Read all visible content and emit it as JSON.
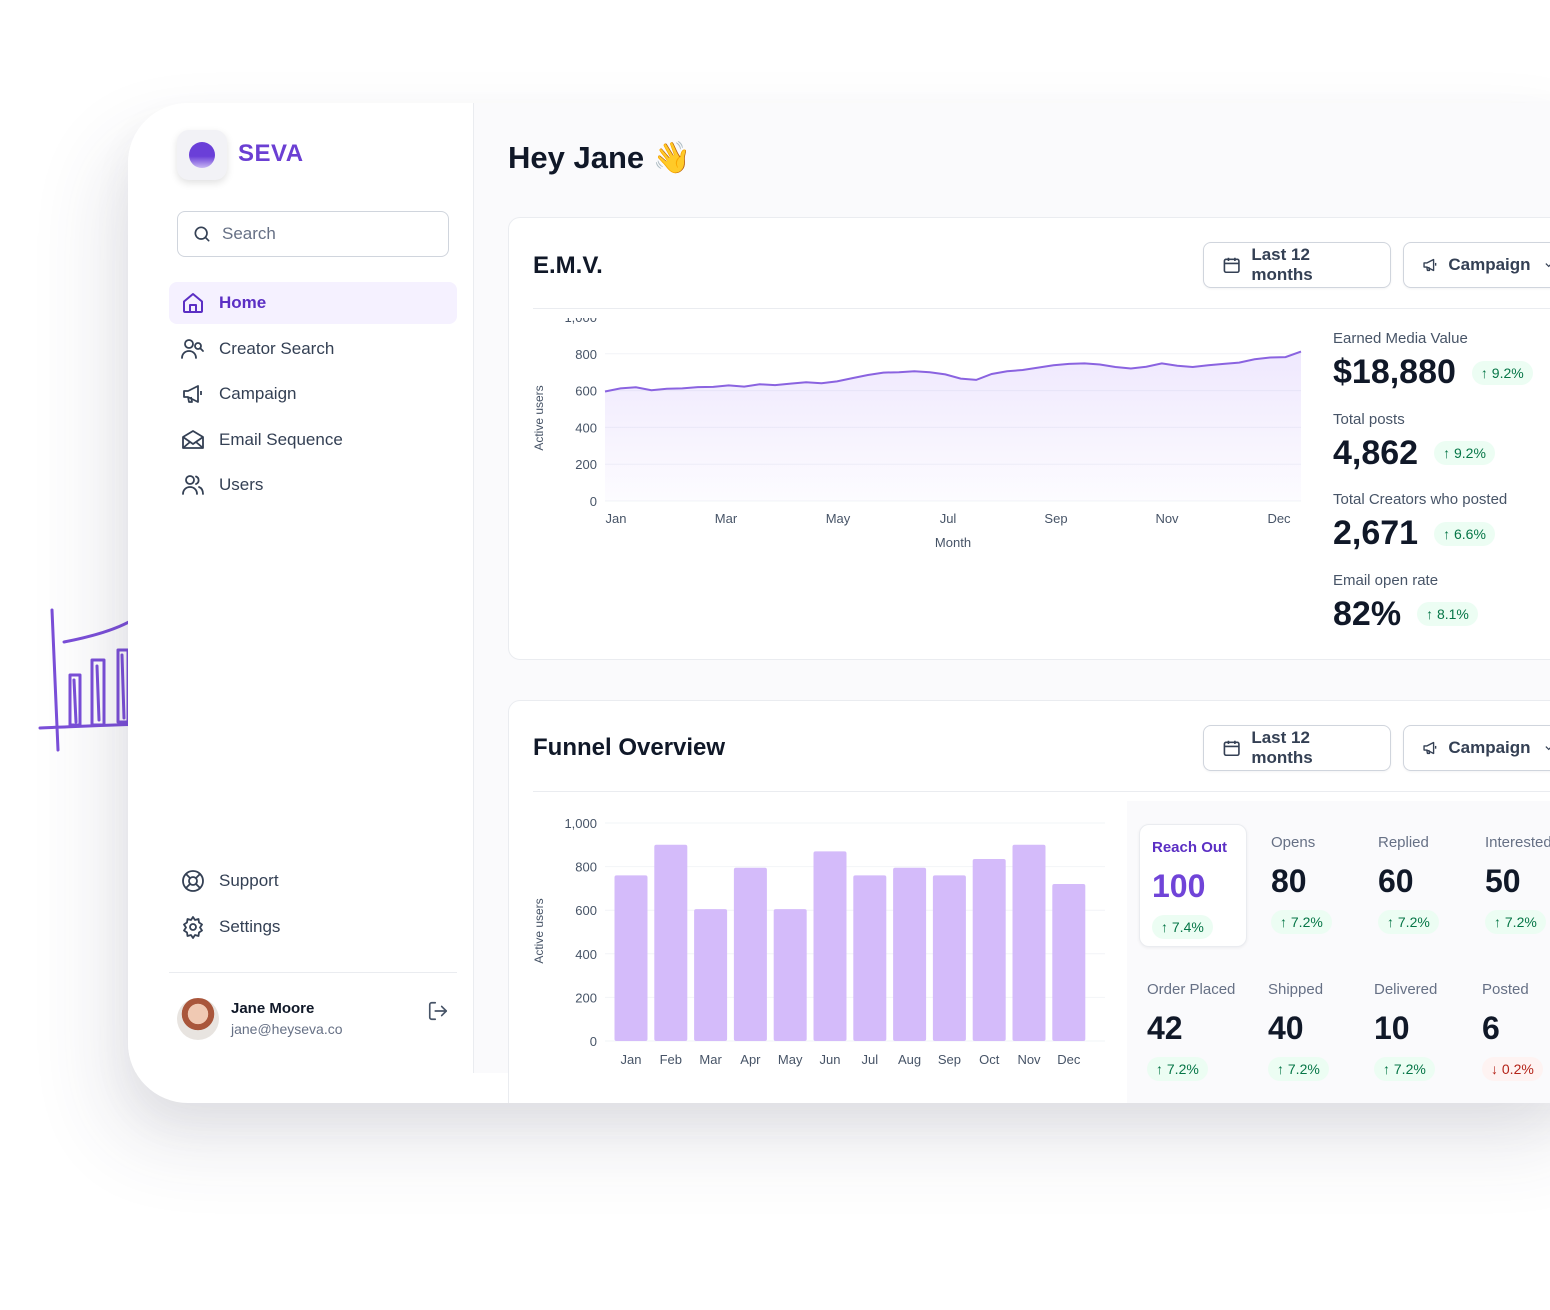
{
  "brand": {
    "name": "SEVA",
    "accent": "#6b3fd3",
    "chart_color": "#d4bbfa"
  },
  "search": {
    "placeholder": "Search"
  },
  "nav": {
    "items": [
      {
        "label": "Home",
        "icon": "home-icon",
        "active": true
      },
      {
        "label": "Creator Search",
        "icon": "creator-search-icon"
      },
      {
        "label": "Campaign",
        "icon": "megaphone-icon"
      },
      {
        "label": "Email Sequence",
        "icon": "mail-icon"
      },
      {
        "label": "Users",
        "icon": "users-icon"
      }
    ],
    "bottom": [
      {
        "label": "Support",
        "icon": "lifebuoy-icon"
      },
      {
        "label": "Settings",
        "icon": "gear-icon"
      }
    ]
  },
  "user": {
    "name": "Jane Moore",
    "email": "jane@heyseva.co"
  },
  "greeting": "Hey Jane 👋",
  "emv": {
    "title": "E.M.V.",
    "date_filter": "Last 12 months",
    "campaign_filter": "Campaign",
    "stats": [
      {
        "label": "Earned Media Value",
        "value": "$18,880",
        "change": "9.2%"
      },
      {
        "label": "Total posts",
        "value": "4,862",
        "change": "9.2%"
      },
      {
        "label": "Total Creators who posted",
        "value": "2,671",
        "change": "6.6%"
      },
      {
        "label": "Email open rate",
        "value": "82%",
        "change": "8.1%"
      }
    ]
  },
  "funnel": {
    "title": "Funnel Overview",
    "date_filter": "Last 12 months",
    "campaign_filter": "Campaign",
    "stages_top": [
      {
        "label": "Reach Out",
        "value": "100",
        "change": "7.4%",
        "direction": "up"
      },
      {
        "label": "Opens",
        "value": "80",
        "change": "7.2%",
        "direction": "up"
      },
      {
        "label": "Replied",
        "value": "60",
        "change": "7.2%",
        "direction": "up"
      },
      {
        "label": "Interested",
        "value": "50",
        "change": "7.2%",
        "direction": "up"
      }
    ],
    "stages_bottom": [
      {
        "label": "Order Placed",
        "value": "42",
        "change": "7.2%",
        "direction": "up"
      },
      {
        "label": "Shipped",
        "value": "40",
        "change": "7.2%",
        "direction": "up"
      },
      {
        "label": "Delivered",
        "value": "10",
        "change": "7.2%",
        "direction": "up"
      },
      {
        "label": "Posted",
        "value": "6",
        "change": "0.2%",
        "direction": "down"
      }
    ]
  },
  "chart_data": [
    {
      "type": "area",
      "xlabel": "Month",
      "ylabel": "Active users",
      "ylim": [
        0,
        1000
      ],
      "yticks": [
        "0",
        "200",
        "400",
        "600",
        "800",
        "1,000"
      ],
      "xtick_labels": [
        "Jan",
        "Mar",
        "May",
        "Jul",
        "Sep",
        "Nov",
        "Dec"
      ],
      "series": [
        {
          "values": [
            595,
            612,
            618,
            602,
            610,
            612,
            619,
            620,
            628,
            622,
            634,
            630,
            638,
            645,
            640,
            650,
            668,
            685,
            698,
            700,
            705,
            700,
            688,
            665,
            658,
            690,
            705,
            712,
            725,
            738,
            745,
            748,
            742,
            728,
            720,
            730,
            748,
            735,
            728,
            738,
            745,
            752,
            770,
            780,
            782,
            812
          ]
        }
      ]
    },
    {
      "type": "bar",
      "ylabel": "Active users",
      "ylim": [
        0,
        1000
      ],
      "yticks": [
        "0",
        "200",
        "400",
        "600",
        "800",
        "1,000"
      ],
      "categories": [
        "Jan",
        "Feb",
        "Mar",
        "Apr",
        "May",
        "Jun",
        "Jul",
        "Aug",
        "Sep",
        "Oct",
        "Nov",
        "Dec"
      ],
      "series": [
        {
          "values": [
            760,
            900,
            605,
            795,
            605,
            870,
            760,
            795,
            760,
            835,
            900,
            720
          ]
        }
      ]
    }
  ]
}
